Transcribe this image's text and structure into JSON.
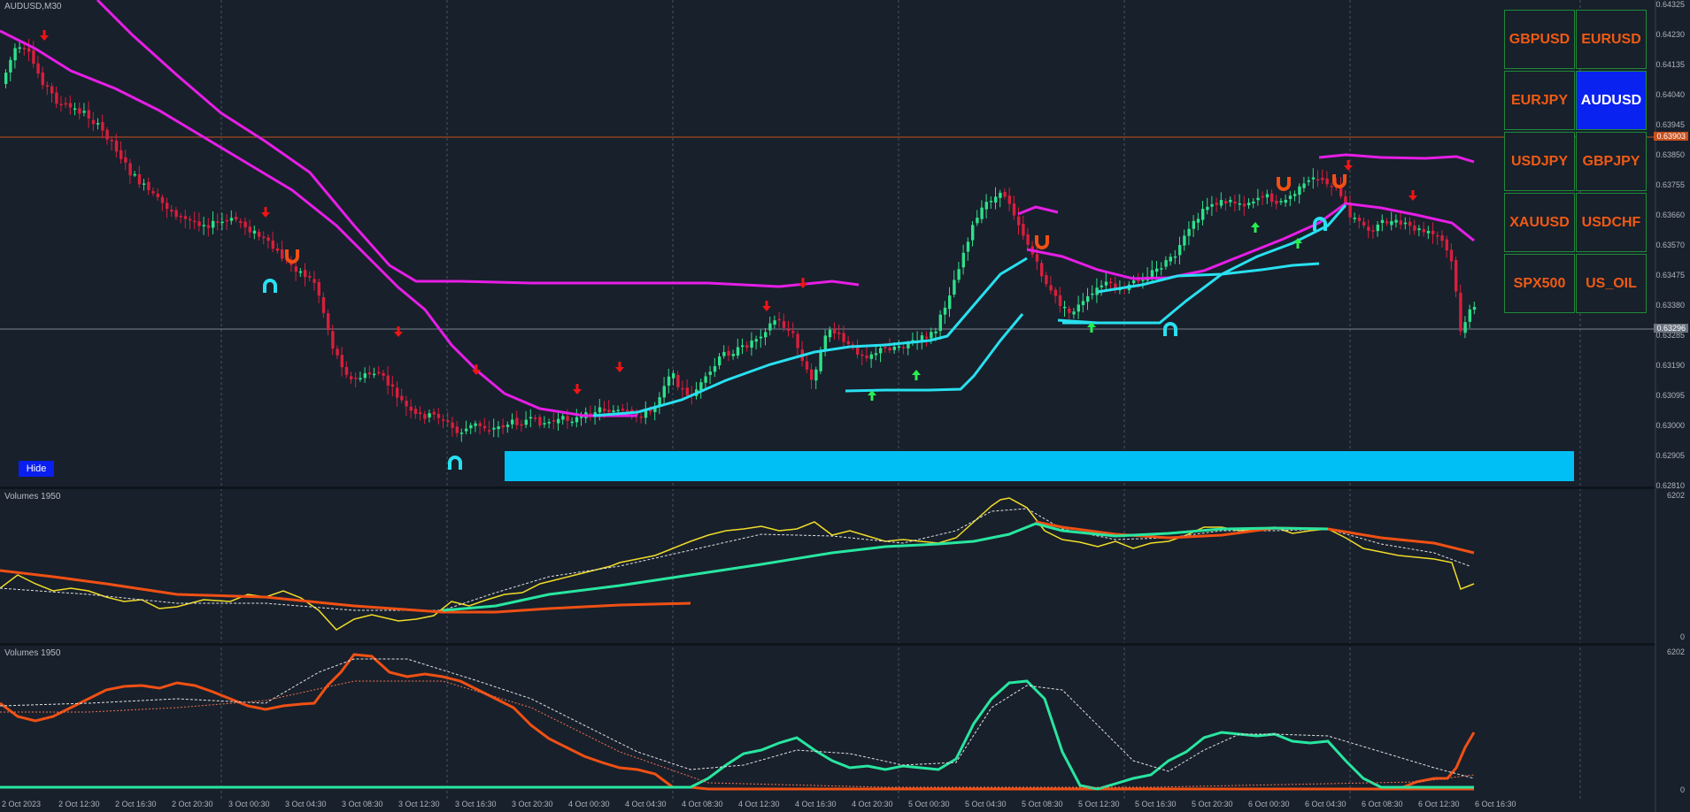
{
  "main": {
    "title": "AUDUSD,M30",
    "price_labels": [
      "0.64325",
      "0.64230",
      "0.64135",
      "0.64040",
      "0.63945",
      "0.63850",
      "0.63755",
      "0.63660",
      "0.63570",
      "0.63475",
      "0.63380",
      "0.63285",
      "0.63190",
      "0.63095",
      "0.63000",
      "0.62905",
      "0.62810"
    ],
    "hline_upper_tag": "0.63903",
    "hline_lower_tag": "0.63296",
    "hide_label": "Hide"
  },
  "panel1": {
    "title": "Volumes 1950",
    "max_label": "6202",
    "min_label": "0"
  },
  "panel2": {
    "title": "Volumes 1950",
    "max_label": "6202",
    "min_label": "0"
  },
  "symbols": [
    "GBPUSD",
    "EURUSD",
    "EURJPY",
    "AUDUSD",
    "USDJPY",
    "GBPJPY",
    "XAUUSD",
    "USDCHF",
    "SPX500",
    "US_OIL"
  ],
  "active_symbol": "AUDUSD",
  "time_labels": [
    "2 Oct 2023",
    "2 Oct 12:30",
    "2 Oct 16:30",
    "2 Oct 20:30",
    "3 Oct 00:30",
    "3 Oct 04:30",
    "3 Oct 08:30",
    "3 Oct 12:30",
    "3 Oct 16:30",
    "3 Oct 20:30",
    "4 Oct 00:30",
    "4 Oct 04:30",
    "4 Oct 08:30",
    "4 Oct 12:30",
    "4 Oct 16:30",
    "4 Oct 20:30",
    "5 Oct 00:30",
    "5 Oct 04:30",
    "5 Oct 08:30",
    "5 Oct 12:30",
    "5 Oct 16:30",
    "5 Oct 20:30",
    "6 Oct 00:30",
    "6 Oct 04:30",
    "6 Oct 08:30",
    "6 Oct 12:30",
    "6 Oct 16:30"
  ],
  "colors": {
    "background": "#18202b",
    "bull_candle": "#2ee08a",
    "bear_candle": "#d81e3c",
    "magenta_line": "#e61ee6",
    "cyan_line": "#28e0f0",
    "zone": "#00bff5",
    "volume_yellow": "#f0dc28",
    "volume_orange": "#f05014",
    "volume_green": "#28e6a0",
    "sell_arrow": "#f01414",
    "buy_arrow": "#28f050"
  }
}
